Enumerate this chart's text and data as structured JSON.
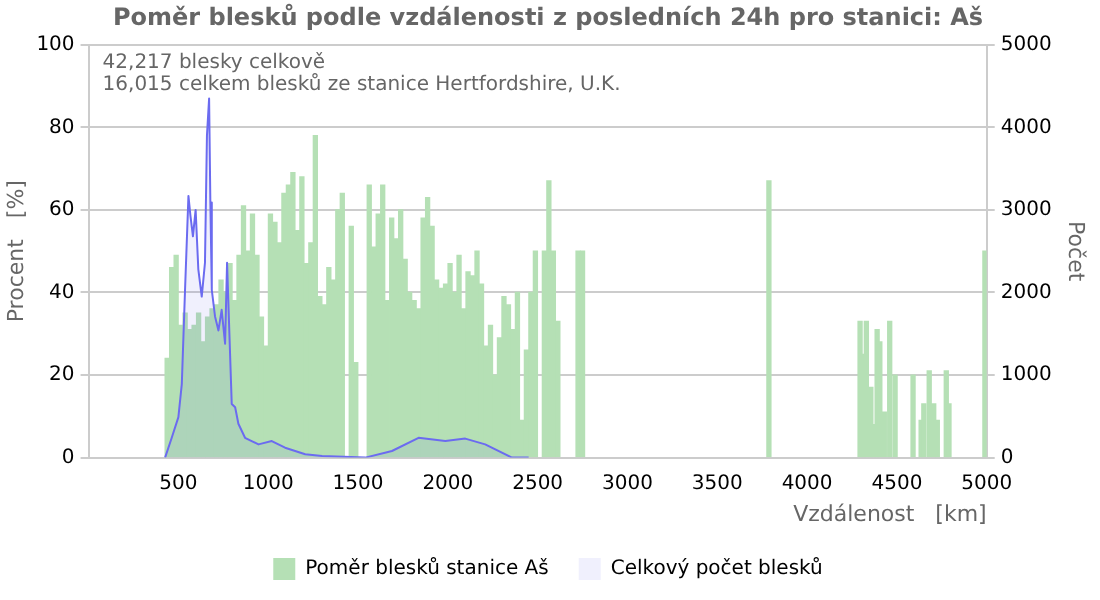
{
  "chart_data": {
    "type": "bar",
    "title": "Poměr blesků podle vzdálenosti z posledních 24h pro stanici: Aš",
    "xlabel": "Vzdálenost   [km]",
    "ylabel": "Procent   [%]",
    "y2label": "Počet",
    "annotations": [
      "42,217 blesky celkově",
      "16,015 celkem blesků ze stanice Hertfordshire, U.K."
    ],
    "series": [
      {
        "name": "Poměr blesků stanice Aš",
        "color": "#b5e0b5",
        "x": [
          437.5,
          462.5,
          487.5,
          512.5,
          537.5,
          562.5,
          587.5,
          612.5,
          637.5,
          662.5,
          687.5,
          712.5,
          737.5,
          762.5,
          787.5,
          812.5,
          837.5,
          862.5,
          887.5,
          912.5,
          937.5,
          962.5,
          987.5,
          1012.5,
          1037.5,
          1062.5,
          1087.5,
          1112.5,
          1137.5,
          1162.5,
          1187.5,
          1212.5,
          1237.5,
          1262.5,
          1287.5,
          1312.5,
          1337.5,
          1362.5,
          1387.5,
          1412.5,
          1462.5,
          1487.5,
          1562.5,
          1587.5,
          1612.5,
          1637.5,
          1662.5,
          1687.5,
          1712.5,
          1737.5,
          1762.5,
          1787.5,
          1812.5,
          1837.5,
          1862.5,
          1887.5,
          1912.5,
          1937.5,
          1962.5,
          1987.5,
          2012.5,
          2037.5,
          2062.5,
          2087.5,
          2112.5,
          2137.5,
          2162.5,
          2187.5,
          2212.5,
          2237.5,
          2262.5,
          2287.5,
          2312.5,
          2337.5,
          2362.5,
          2387.5,
          2412.5,
          2437.5,
          2462.5,
          2487.5,
          2537.5,
          2562.5,
          2587.5,
          2612.5,
          2725,
          2750,
          3787.5,
          4295,
          4310,
          4330,
          4355,
          4370,
          4390,
          4405,
          4430,
          4460,
          4490,
          4590,
          4635,
          4650,
          4680,
          4705,
          4725,
          4775,
          4790,
          4990
        ],
        "values": [
          24,
          46,
          49,
          32,
          35,
          31,
          32,
          35,
          28,
          34,
          36,
          37,
          43,
          40,
          47,
          38,
          49,
          61,
          50,
          59,
          49,
          34,
          27,
          59,
          57,
          52,
          64,
          66,
          69,
          55,
          68,
          47,
          52,
          78,
          39,
          37,
          46,
          43,
          60,
          64,
          56,
          23,
          66,
          51,
          59,
          66,
          38,
          58,
          53,
          60,
          48,
          40,
          38,
          36,
          58,
          63,
          56,
          43,
          41,
          42,
          47,
          40,
          49,
          36,
          45,
          44,
          50,
          42,
          27,
          32,
          20,
          29,
          39,
          37,
          31,
          40,
          9,
          26,
          40,
          50,
          50,
          67,
          50,
          33,
          50,
          50,
          67,
          33,
          25,
          33,
          17,
          8,
          31,
          28,
          11,
          33,
          20,
          20,
          9,
          13,
          21,
          13,
          9,
          21,
          13,
          50
        ]
      },
      {
        "name": "Celkový počet blesků",
        "type": "area",
        "axis": "y2",
        "color": "#6b6bf0",
        "x": [
          426,
          463,
          500,
          519,
          537,
          556,
          567,
          581,
          596,
          611,
          630,
          648,
          659,
          671,
          678,
          686,
          704,
          723,
          741,
          760,
          771,
          782,
          797,
          816,
          834,
          871,
          908,
          946,
          1020,
          1094,
          1206,
          1300,
          1540,
          1689,
          1837,
          1986,
          2097,
          2208,
          2357,
          2450
        ],
        "values": [
          0,
          240,
          490,
          890,
          2030,
          3170,
          2930,
          2680,
          3000,
          2280,
          1950,
          2360,
          3900,
          4350,
          3090,
          2030,
          1710,
          1540,
          1790,
          1380,
          2360,
          1630,
          650,
          610,
          410,
          240,
          200,
          160,
          200,
          120,
          40,
          20,
          0,
          80,
          240,
          200,
          230,
          160,
          0,
          0
        ]
      }
    ],
    "xlim": [
      0,
      5000
    ],
    "xticks": [
      500,
      1000,
      1500,
      2000,
      2500,
      3000,
      3500,
      4000,
      4500,
      5000
    ],
    "ylim": [
      0,
      100
    ],
    "yticks": [
      0,
      20,
      40,
      60,
      80,
      100
    ],
    "y2lim": [
      0,
      5000
    ],
    "y2ticks": [
      0,
      1000,
      2000,
      3000,
      4000,
      5000
    ],
    "grid": "y",
    "legend": "bottom"
  }
}
